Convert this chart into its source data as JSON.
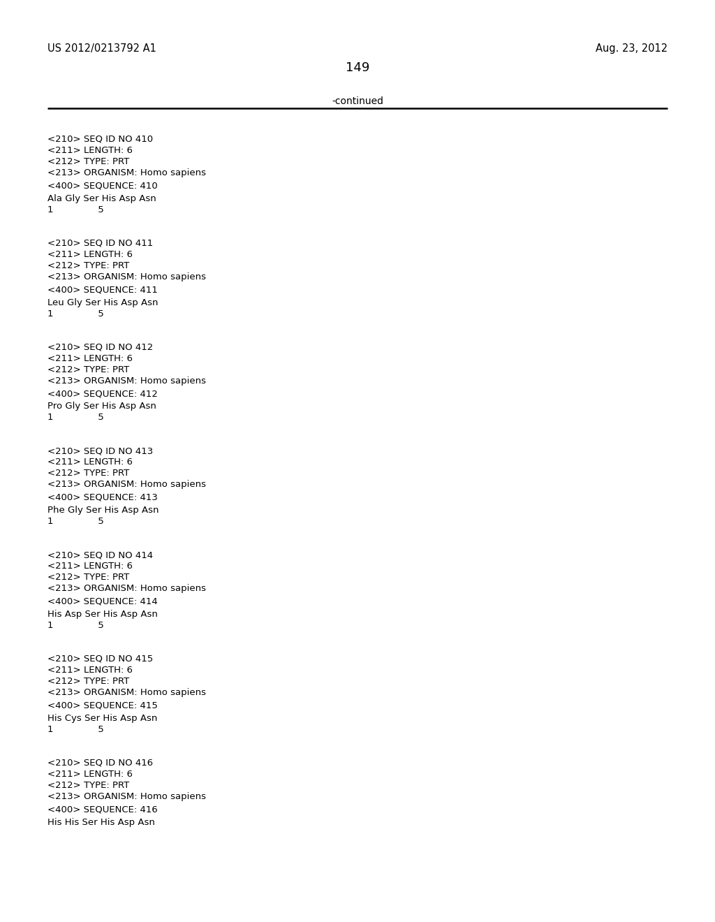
{
  "top_left_text": "US 2012/0213792 A1",
  "top_right_text": "Aug. 23, 2012",
  "page_number": "149",
  "continued_text": "-continued",
  "background_color": "#ffffff",
  "text_color": "#000000",
  "font_size_header": 10.5,
  "font_size_page_num": 13,
  "font_size_continued": 10,
  "font_size_body": 9.5,
  "sequences": [
    {
      "seq_id": "410",
      "length": "6",
      "type": "PRT",
      "organism": "Homo sapiens",
      "sequence_line": "Ala Gly Ser His Asp Asn",
      "numbering": "1               5"
    },
    {
      "seq_id": "411",
      "length": "6",
      "type": "PRT",
      "organism": "Homo sapiens",
      "sequence_line": "Leu Gly Ser His Asp Asn",
      "numbering": "1               5"
    },
    {
      "seq_id": "412",
      "length": "6",
      "type": "PRT",
      "organism": "Homo sapiens",
      "sequence_line": "Pro Gly Ser His Asp Asn",
      "numbering": "1               5"
    },
    {
      "seq_id": "413",
      "length": "6",
      "type": "PRT",
      "organism": "Homo sapiens",
      "sequence_line": "Phe Gly Ser His Asp Asn",
      "numbering": "1               5"
    },
    {
      "seq_id": "414",
      "length": "6",
      "type": "PRT",
      "organism": "Homo sapiens",
      "sequence_line": "His Asp Ser His Asp Asn",
      "numbering": "1               5"
    },
    {
      "seq_id": "415",
      "length": "6",
      "type": "PRT",
      "organism": "Homo sapiens",
      "sequence_line": "His Cys Ser His Asp Asn",
      "numbering": "1               5"
    },
    {
      "seq_id": "416",
      "length": "6",
      "type": "PRT",
      "organism": "Homo sapiens",
      "sequence_line": "His His Ser His Asp Asn",
      "numbering": ""
    }
  ]
}
